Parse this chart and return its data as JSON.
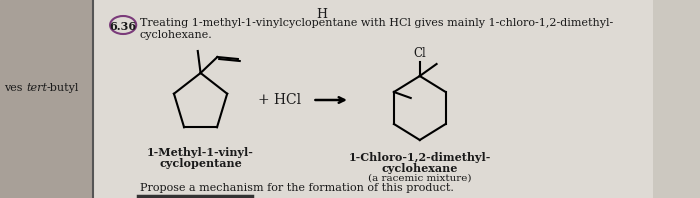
{
  "bg_color": "#ccc8c0",
  "left_bg": "#a8a098",
  "page_bg": "#dedad4",
  "text_color": "#1a1a1a",
  "label1_bold": "1-Methyl-1-vinyl-\ncyclopentane",
  "label2_bold": "1-Chloro-1,2-dimethyl-\ncyclohexane",
  "label2_italic": "(a racemic mixture)",
  "plus_hcl": "+ HCl",
  "propose": "Propose a mechanism for the formation of this product.",
  "left_margin_text1": "ves ",
  "left_margin_text2": "tert",
  "left_margin_text3": "-butyl",
  "problem_num": "6.36",
  "top_h": "H",
  "title_line1": "Treating 1-methyl-1-vinylcyclopentane with HCl gives mainly 1-chloro-1,2-dimethyl-",
  "title_line2": "cyclohexane."
}
